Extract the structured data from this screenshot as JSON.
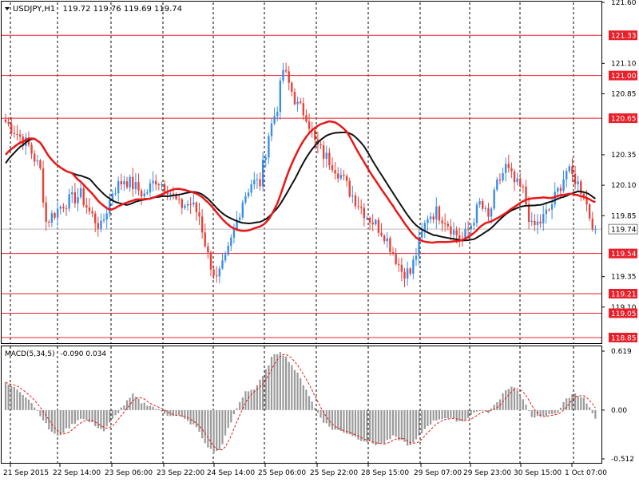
{
  "chart_header": {
    "symbol_label": "USDJPY,H1",
    "ohlc_text": "119.72 119.76 119.69 119.74"
  },
  "macd_header": {
    "label": "MACD(5,34,5)",
    "values_text": "-0.090 0.034"
  },
  "colors": {
    "background": "#ffffff",
    "grid": "#000000",
    "bull_candle": "#3a8ee6",
    "bear_candle": "#e8413a",
    "level_line": "#e8202a",
    "level_label_bg": "#e8202a",
    "ma_fast": "#e81818",
    "ma_slow": "#111111",
    "current_price_line": "#bbbbbb",
    "macd_hist": "#9a9a9a",
    "macd_signal": "#e81818"
  },
  "icons": {
    "dropdown": "triangle-down-icon"
  },
  "chart_data": [
    {
      "type": "candlestick",
      "title": "USDJPY,H1",
      "ylim": [
        118.85,
        121.6
      ],
      "y_ticks": [
        "121.60",
        "121.10",
        "120.85",
        "120.35",
        "120.10",
        "119.85",
        "119.35",
        "119.10"
      ],
      "current_price": "119.74",
      "horizontal_levels": [
        "121.33",
        "121.00",
        "120.65",
        "119.54",
        "119.21",
        "119.05",
        "118.85"
      ],
      "x_tick_labels": [
        "21 Sep 2015",
        "22 Sep 14:00",
        "23 Sep 06:00",
        "23 Sep 22:00",
        "24 Sep 14:00",
        "25 Sep 06:00",
        "25 Sep 22:00",
        "28 Sep 15:00",
        "29 Sep 07:00",
        "29 Sep 23:00",
        "30 Sep 15:00",
        "1 Oct 07:00"
      ],
      "close_anchors": [
        [
          0,
          120.62
        ],
        [
          3,
          120.55
        ],
        [
          8,
          120.42
        ],
        [
          12,
          120.22
        ],
        [
          14,
          119.8
        ],
        [
          20,
          119.95
        ],
        [
          26,
          120.02
        ],
        [
          29,
          119.88
        ],
        [
          33,
          119.75
        ],
        [
          37,
          120.05
        ],
        [
          41,
          120.15
        ],
        [
          44,
          120.1
        ],
        [
          48,
          120.02
        ],
        [
          52,
          120.15
        ],
        [
          56,
          120.08
        ],
        [
          60,
          119.93
        ],
        [
          64,
          119.95
        ],
        [
          67,
          119.85
        ],
        [
          70,
          119.52
        ],
        [
          73,
          119.32
        ],
        [
          76,
          119.48
        ],
        [
          79,
          119.72
        ],
        [
          82,
          119.98
        ],
        [
          85,
          120.12
        ],
        [
          88,
          120.12
        ],
        [
          91,
          120.52
        ],
        [
          94,
          120.75
        ],
        [
          96,
          121.05
        ],
        [
          98,
          120.93
        ],
        [
          101,
          120.75
        ],
        [
          104,
          120.68
        ],
        [
          107,
          120.45
        ],
        [
          110,
          120.35
        ],
        [
          113,
          120.28
        ],
        [
          116,
          120.18
        ],
        [
          119,
          120.05
        ],
        [
          122,
          119.95
        ],
        [
          125,
          119.85
        ],
        [
          128,
          119.78
        ],
        [
          131,
          119.7
        ],
        [
          134,
          119.55
        ],
        [
          137,
          119.4
        ],
        [
          140,
          119.38
        ],
        [
          143,
          119.62
        ],
        [
          146,
          119.85
        ],
        [
          149,
          119.88
        ],
        [
          152,
          119.82
        ],
        [
          155,
          119.72
        ],
        [
          158,
          119.65
        ],
        [
          161,
          119.78
        ],
        [
          164,
          119.95
        ],
        [
          167,
          119.82
        ],
        [
          170,
          120.1
        ],
        [
          173,
          120.25
        ],
        [
          176,
          120.12
        ],
        [
          179,
          120.05
        ],
        [
          182,
          119.75
        ],
        [
          185,
          119.8
        ],
        [
          188,
          119.9
        ],
        [
          191,
          120.05
        ],
        [
          194,
          120.22
        ],
        [
          197,
          120.15
        ],
        [
          200,
          120.03
        ],
        [
          202,
          119.85
        ],
        [
          204,
          119.74
        ]
      ]
    },
    {
      "type": "bar",
      "title": "MACD(5,34,5)",
      "ylim": [
        -0.512,
        0.619
      ],
      "y_ticks": [
        "0.619",
        "0.00",
        "-0.512"
      ],
      "current_values": [
        "-0.090",
        "0.034"
      ],
      "hist_anchors": [
        [
          0,
          0.28
        ],
        [
          4,
          0.22
        ],
        [
          8,
          0.12
        ],
        [
          12,
          -0.05
        ],
        [
          15,
          -0.2
        ],
        [
          18,
          -0.28
        ],
        [
          22,
          -0.18
        ],
        [
          26,
          -0.08
        ],
        [
          30,
          -0.14
        ],
        [
          34,
          -0.22
        ],
        [
          37,
          -0.1
        ],
        [
          40,
          0.02
        ],
        [
          44,
          0.16
        ],
        [
          47,
          0.08
        ],
        [
          50,
          0.05
        ],
        [
          53,
          0.0
        ],
        [
          56,
          -0.05
        ],
        [
          60,
          -0.06
        ],
        [
          63,
          -0.12
        ],
        [
          66,
          -0.18
        ],
        [
          69,
          -0.35
        ],
        [
          72,
          -0.45
        ],
        [
          74,
          -0.42
        ],
        [
          77,
          -0.2
        ],
        [
          80,
          0.02
        ],
        [
          83,
          0.2
        ],
        [
          86,
          0.22
        ],
        [
          89,
          0.35
        ],
        [
          92,
          0.55
        ],
        [
          95,
          0.62
        ],
        [
          98,
          0.52
        ],
        [
          101,
          0.38
        ],
        [
          104,
          0.22
        ],
        [
          107,
          0.02
        ],
        [
          110,
          -0.12
        ],
        [
          113,
          -0.2
        ],
        [
          116,
          -0.22
        ],
        [
          119,
          -0.25
        ],
        [
          122,
          -0.3
        ],
        [
          125,
          -0.33
        ],
        [
          128,
          -0.36
        ],
        [
          131,
          -0.35
        ],
        [
          134,
          -0.28
        ],
        [
          137,
          -0.32
        ],
        [
          140,
          -0.38
        ],
        [
          143,
          -0.28
        ],
        [
          146,
          -0.16
        ],
        [
          149,
          -0.1
        ],
        [
          152,
          -0.08
        ],
        [
          155,
          -0.1
        ],
        [
          158,
          -0.12
        ],
        [
          161,
          -0.05
        ],
        [
          164,
          0.0
        ],
        [
          167,
          -0.02
        ],
        [
          170,
          0.08
        ],
        [
          173,
          0.22
        ],
        [
          176,
          0.25
        ],
        [
          179,
          0.1
        ],
        [
          182,
          -0.06
        ],
        [
          185,
          -0.08
        ],
        [
          188,
          -0.05
        ],
        [
          191,
          -0.02
        ],
        [
          194,
          0.12
        ],
        [
          197,
          0.18
        ],
        [
          200,
          0.12
        ],
        [
          202,
          0.02
        ],
        [
          204,
          -0.09
        ]
      ]
    }
  ]
}
